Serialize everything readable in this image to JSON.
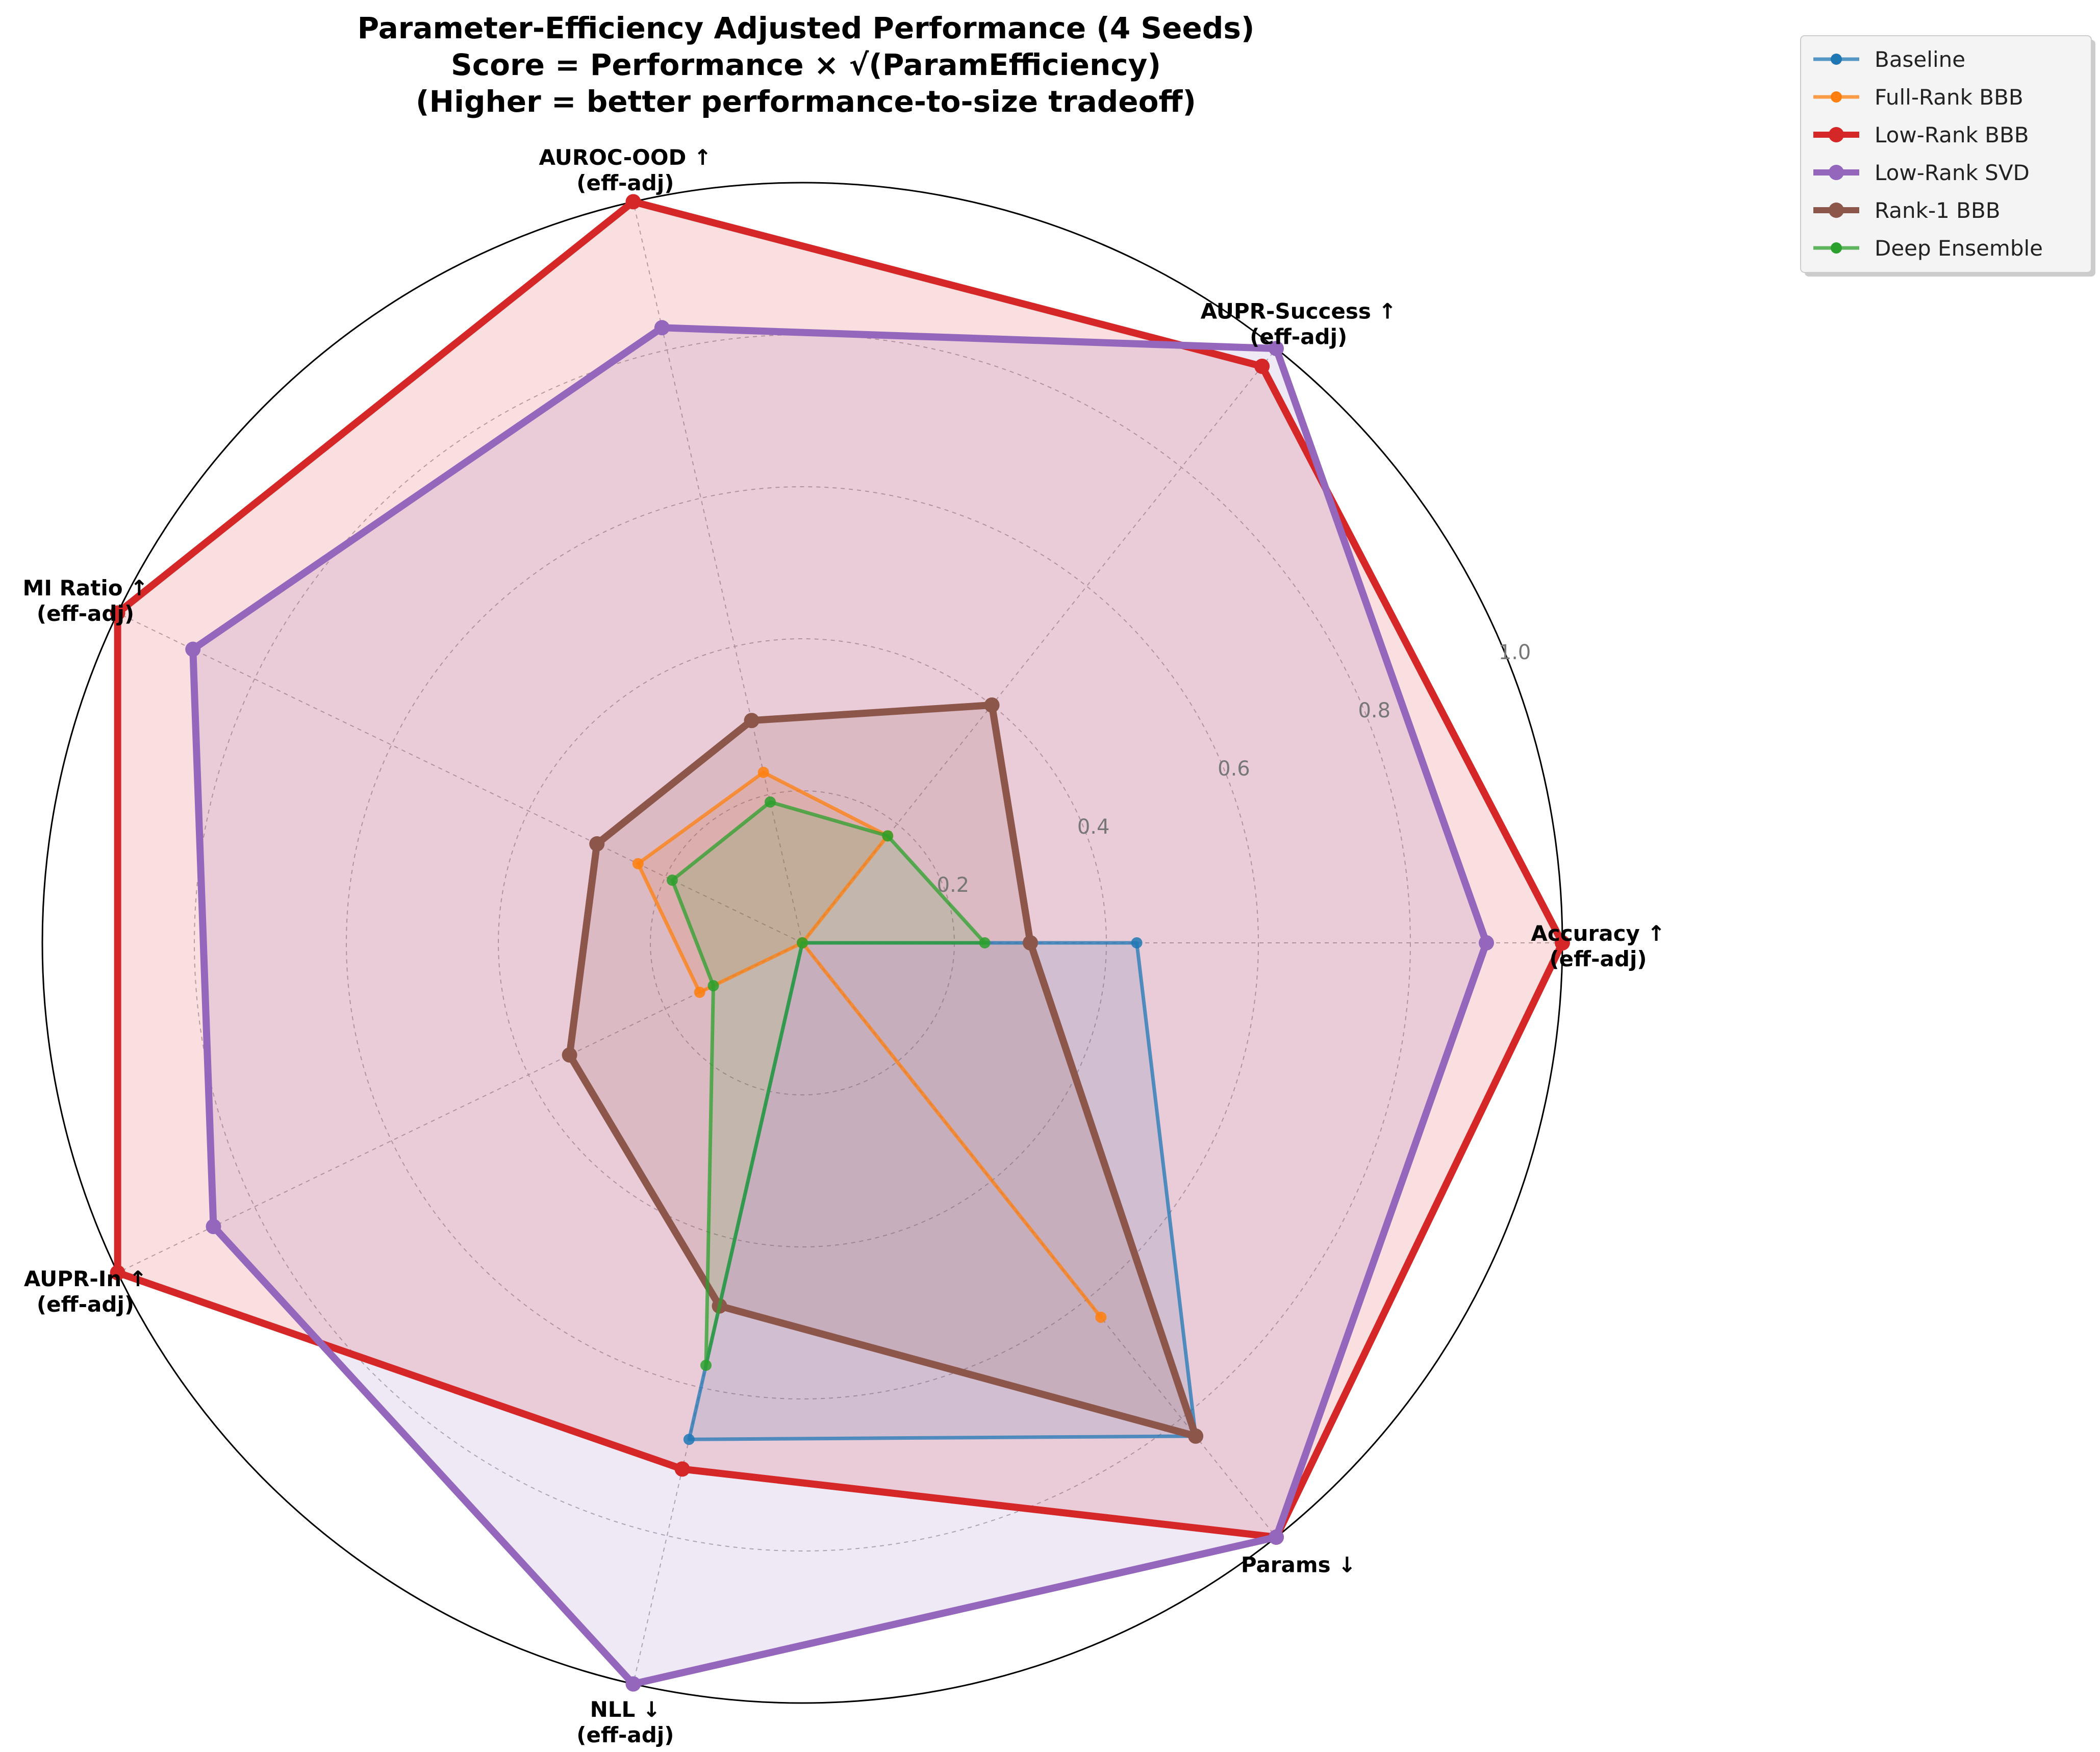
{
  "chart_data": {
    "type": "radar",
    "title": [
      "Parameter-Efficiency Adjusted Performance (4 Seeds)",
      "Score = Performance × √(ParamEfficiency)",
      "(Higher = better performance-to-size tradeoff)"
    ],
    "axes": [
      {
        "line1": "Accuracy ↑",
        "line2": "(eff-adj)"
      },
      {
        "line1": "AUPR-Success ↑",
        "line2": "(eff-adj)"
      },
      {
        "line1": "AUROC-OOD ↑",
        "line2": "(eff-adj)"
      },
      {
        "line1": "MI Ratio ↑",
        "line2": "(eff-adj)"
      },
      {
        "line1": "AUPR-In ↑",
        "line2": "(eff-adj)"
      },
      {
        "line1": "NLL ↓",
        "line2": "(eff-adj)"
      },
      {
        "line1": "Params ↓",
        "line2": ""
      }
    ],
    "r_range": [
      0,
      1.0
    ],
    "r_ticks": [
      "0.2",
      "0.4",
      "0.6",
      "0.8",
      "1.0"
    ],
    "r_tick_values": [
      0.2,
      0.4,
      0.6,
      0.8,
      1.0
    ],
    "legend_position": "upper-right-outside",
    "series": [
      {
        "name": "Baseline",
        "color": "#1f77b4",
        "values": [
          0.44,
          0.0,
          0.0,
          0.0,
          0.0,
          0.67,
          0.83
        ],
        "bold": false
      },
      {
        "name": "Full-Rank BBB",
        "color": "#ff7f0e",
        "values": [
          0.0,
          0.18,
          0.23,
          0.24,
          0.15,
          0.0,
          0.63
        ],
        "bold": false
      },
      {
        "name": "Low-Rank BBB",
        "color": "#d62728",
        "values": [
          1.0,
          0.97,
          1.0,
          1.0,
          1.0,
          0.71,
          1.0
        ],
        "bold": true
      },
      {
        "name": "Low-Rank SVD",
        "color": "#9467bd",
        "values": [
          0.9,
          1.0,
          0.83,
          0.89,
          0.86,
          1.0,
          1.0
        ],
        "bold": true
      },
      {
        "name": "Rank-1 BBB",
        "color": "#8c564b",
        "values": [
          0.3,
          0.4,
          0.3,
          0.3,
          0.34,
          0.49,
          0.83
        ],
        "bold": true
      },
      {
        "name": "Deep Ensemble",
        "color": "#2ca02c",
        "values": [
          0.24,
          0.18,
          0.19,
          0.19,
          0.13,
          0.57,
          0.0
        ],
        "bold": false
      }
    ]
  }
}
